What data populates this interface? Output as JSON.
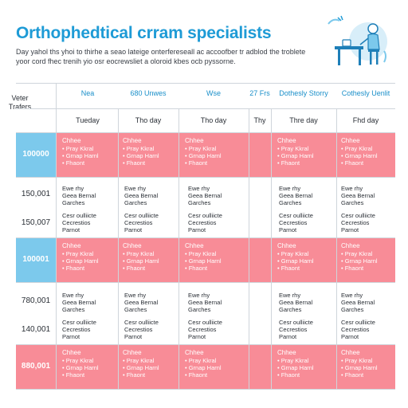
{
  "header": {
    "title": "Orthophedtical crram specialists",
    "subtitle": "Day yahol ths yhoi to thirhe a seao lateige onterfereseall ac accoofber tr adblod the troblete yoor cord fhec trenih yio osr eocrewsliet a oloroid kbes ocb pyssorne."
  },
  "columns": [
    {
      "head": "Nea",
      "sub": "Tueday"
    },
    {
      "head": "680 Unwes",
      "sub": "Tho day"
    },
    {
      "head": "Wse",
      "sub": "Tho day"
    },
    {
      "head": "27 Frs",
      "sub": "Thy"
    },
    {
      "head": "Dothesly Storry",
      "sub": "Thre day"
    },
    {
      "head": "Cothesly Uenlit",
      "sub": "Fhd day"
    }
  ],
  "rowhead": "Veter Trafers",
  "times": [
    "100000",
    "150,001",
    "150,007",
    "100001",
    "780,001",
    "140,001",
    "880,001"
  ],
  "band_cell": {
    "title": "Chhee",
    "lines": [
      "Pray Kkral",
      "Grnap Harnl",
      "Fhaont"
    ]
  },
  "gen_cell_a": {
    "lines": [
      "Ewe rhy",
      "Geea Bernal",
      "Garches"
    ]
  },
  "gen_cell_b": {
    "lines": [
      "Cesr oulliicte",
      "Cecrestios",
      "Parnot"
    ]
  },
  "colors": {
    "accent": "#1e9bd6",
    "band": "#f88c97",
    "band_head": "#7cc9ec"
  }
}
